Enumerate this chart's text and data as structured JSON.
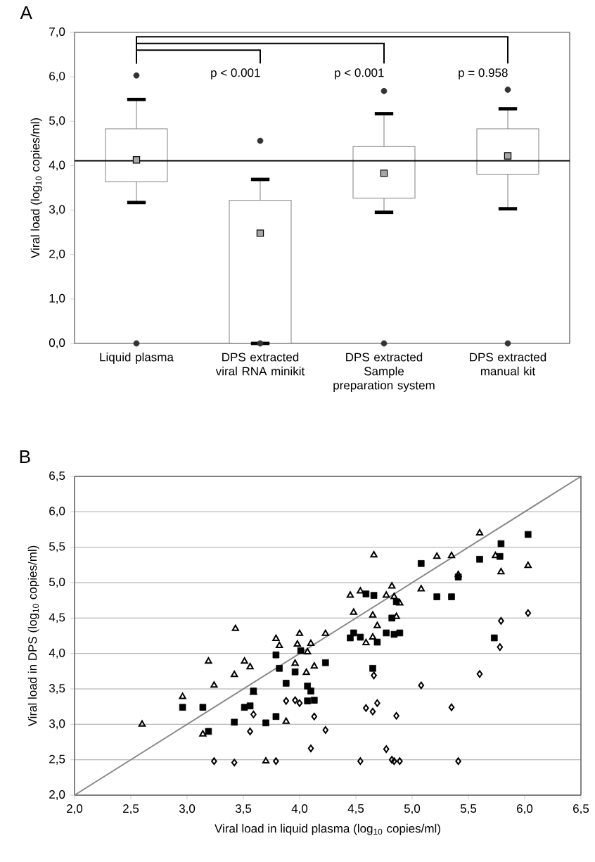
{
  "chart_data": [
    {
      "type": "box",
      "title": "A",
      "ylabel": "Viral load (log$_{10}$ copies/ml)",
      "categories": [
        "Liquid plasma",
        "DPS extracted viral RNA minikit",
        "DPS extracted Sample preparation system",
        "DPS extracted manual kit"
      ],
      "boxes": [
        {
          "low": 3.17,
          "q1": 3.64,
          "median": 4.13,
          "q3": 4.83,
          "high": 5.49,
          "outliers": [
            6.03,
            0.0
          ]
        },
        {
          "low": 0.0,
          "q1": 0.0,
          "median": 2.48,
          "q3": 3.22,
          "high": 3.69,
          "outliers": [
            4.56,
            0.0
          ]
        },
        {
          "low": 2.95,
          "q1": 3.27,
          "median": 3.83,
          "q3": 4.43,
          "high": 5.17,
          "outliers": [
            5.68,
            0.0
          ]
        },
        {
          "low": 3.03,
          "q1": 3.81,
          "median": 4.22,
          "q3": 4.83,
          "high": 5.28,
          "outliers": [
            5.71,
            0.0
          ]
        }
      ],
      "ylim": [
        0,
        7
      ],
      "yticks": [
        {
          "value": 0,
          "label": "0,0"
        },
        {
          "value": 1,
          "label": "1,0"
        },
        {
          "value": 2,
          "label": "2,0"
        },
        {
          "value": 3,
          "label": "3,0"
        },
        {
          "value": 4,
          "label": "4,0"
        },
        {
          "value": 5,
          "label": "5,0"
        },
        {
          "value": 6,
          "label": "6,0"
        },
        {
          "value": 7,
          "label": "7,0"
        }
      ],
      "ref_lines": [
        {
          "axis": "y",
          "value": 4.11,
          "color": "#000000"
        }
      ],
      "annotations": [
        "p < 0.001",
        "p < 0.001",
        "p = 0.958"
      ]
    },
    {
      "type": "scatter",
      "title": "B",
      "xlabel": "Viral load in liquid plasma (log$_{10}$ copies/ml)",
      "ylabel": "Viral load in DPS (log$_{10}$ copies/ml)",
      "xlim": [
        2,
        6.5
      ],
      "ylim": [
        2,
        6.5
      ],
      "xticks": [
        {
          "value": 2,
          "label": "2,0"
        },
        {
          "value": 2.5,
          "label": "2,5"
        },
        {
          "value": 3,
          "label": "3,0"
        },
        {
          "value": 3.5,
          "label": "3,5"
        },
        {
          "value": 4,
          "label": "4,0"
        },
        {
          "value": 4.5,
          "label": "4,5"
        },
        {
          "value": 5,
          "label": "5,0"
        },
        {
          "value": 5.5,
          "label": "5,5"
        },
        {
          "value": 6,
          "label": "6,0"
        },
        {
          "value": 6.5,
          "label": "6,5"
        }
      ],
      "yticks": [
        {
          "value": 2,
          "label": "2,0"
        },
        {
          "value": 2.5,
          "label": "2,5"
        },
        {
          "value": 3,
          "label": "3,0"
        },
        {
          "value": 3.5,
          "label": "3,5"
        },
        {
          "value": 4,
          "label": "4,0"
        },
        {
          "value": 4.5,
          "label": "4,5"
        },
        {
          "value": 5,
          "label": "5,0"
        },
        {
          "value": 5.5,
          "label": "5,5"
        },
        {
          "value": 6,
          "label": "6,0"
        },
        {
          "value": 6.5,
          "label": "6,5"
        }
      ],
      "grid": "y",
      "series": [
        {
          "color": "#000000",
          "marker": "triangle",
          "x": [
            2.6,
            2.96,
            3.14,
            3.19,
            3.24,
            3.42,
            3.43,
            3.51,
            3.56,
            3.59,
            3.7,
            3.79,
            3.82,
            3.88,
            3.96,
            3.98,
            4.0,
            4.07,
            4.06,
            4.13,
            4.1,
            4.23,
            4.59,
            4.65,
            4.69,
            4.48,
            4.65,
            4.86,
            4.45,
            4.54,
            4.77,
            4.84,
            4.89,
            4.82,
            5.08,
            4.66,
            5.22,
            5.35,
            5.74,
            6.03,
            5.79,
            5.41,
            5.6
          ],
          "values": [
            3.0,
            3.39,
            2.86,
            3.89,
            3.55,
            3.7,
            4.35,
            3.89,
            3.81,
            3.45,
            2.48,
            4.21,
            4.11,
            3.04,
            3.86,
            4.13,
            4.28,
            4.02,
            3.73,
            3.82,
            4.14,
            4.28,
            4.15,
            4.23,
            4.39,
            4.58,
            4.54,
            4.52,
            4.82,
            4.88,
            4.82,
            4.8,
            4.71,
            4.95,
            4.91,
            5.39,
            5.37,
            5.38,
            5.38,
            5.24,
            5.15,
            5.11,
            5.7
          ]
        },
        {
          "color": "#000000",
          "marker": "square",
          "x": [
            2.96,
            3.14,
            3.19,
            3.42,
            3.51,
            3.56,
            3.59,
            3.7,
            3.79,
            3.82,
            3.88,
            3.96,
            3.79,
            4.01,
            4.07,
            4.07,
            4.1,
            4.13,
            4.23,
            4.65,
            4.45,
            4.48,
            4.54,
            4.69,
            4.77,
            4.84,
            4.89,
            4.82,
            4.86,
            4.59,
            4.66,
            5.22,
            5.35,
            5.41,
            5.08,
            5.6,
            5.78,
            5.73,
            5.79,
            6.03
          ],
          "values": [
            3.24,
            3.24,
            2.9,
            3.03,
            3.24,
            3.26,
            3.47,
            3.02,
            3.98,
            3.79,
            3.58,
            3.74,
            3.11,
            4.04,
            3.54,
            3.33,
            3.47,
            3.34,
            3.87,
            3.79,
            4.22,
            4.29,
            4.23,
            4.16,
            4.29,
            4.27,
            4.29,
            4.5,
            4.73,
            4.84,
            4.82,
            4.8,
            4.8,
            5.08,
            5.27,
            5.33,
            5.37,
            4.22,
            5.55,
            5.68
          ]
        },
        {
          "color": "#000000",
          "marker": "diamond",
          "x": [
            3.24,
            3.42,
            3.56,
            3.59,
            3.79,
            3.88,
            3.96,
            4.0,
            4.13,
            4.23,
            4.1,
            4.54,
            4.59,
            4.65,
            4.66,
            4.69,
            4.77,
            4.82,
            4.84,
            4.86,
            4.89,
            5.08,
            5.35,
            5.41,
            5.6,
            5.78,
            5.79,
            6.03
          ],
          "values": [
            2.48,
            2.46,
            2.9,
            3.14,
            2.48,
            3.33,
            3.34,
            3.3,
            3.11,
            2.92,
            2.66,
            2.48,
            3.23,
            3.18,
            3.69,
            3.3,
            2.65,
            2.5,
            2.48,
            3.12,
            2.48,
            3.55,
            3.24,
            2.48,
            3.71,
            4.09,
            4.46,
            4.57
          ]
        },
        {
          "type": "line",
          "color": "#888888",
          "x": [
            2,
            6.5
          ],
          "values": [
            2,
            6.5
          ]
        }
      ]
    }
  ]
}
